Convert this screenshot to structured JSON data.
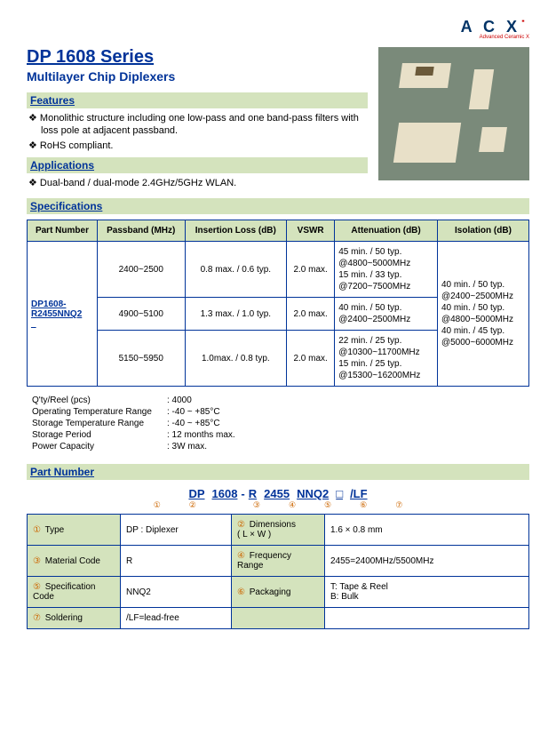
{
  "logo": {
    "text": "A C X",
    "sub": "Advanced Ceramic X"
  },
  "title": "DP 1608 Series",
  "subtitle": "Multilayer Chip Diplexers",
  "sections": {
    "features": "Features",
    "applications": "Applications",
    "specifications": "Specifications",
    "partnumber": "Part Number"
  },
  "features": [
    "Monolithic structure including one low-pass and one band-pass filters with loss pole at adjacent passband.",
    "RoHS compliant."
  ],
  "applications": [
    "Dual-band / dual-mode 2.4GHz/5GHz WLAN."
  ],
  "spec_headers": {
    "pn": "Part Number",
    "passband": "Passband (MHz)",
    "il": "Insertion Loss (dB)",
    "vswr": "VSWR",
    "att": "Attenuation (dB)",
    "iso": "Isolation (dB)"
  },
  "spec_pn": "DP1608-R2455NNQ2_",
  "spec_rows": [
    {
      "passband": "2400~2500",
      "il": "0.8 max. / 0.6 typ.",
      "vswr": "2.0 max.",
      "att": [
        "45 min. / 50 typ.",
        "@4800~5000MHz",
        "15 min. / 33 typ.",
        "@7200~7500MHz"
      ]
    },
    {
      "passband": "4900~5100",
      "il": "1.3 max. / 1.0 typ.",
      "vswr": "2.0 max.",
      "att": [
        "40 min. / 50 typ.",
        "@2400~2500MHz"
      ]
    },
    {
      "passband": "5150~5950",
      "il": "1.0max. / 0.8 typ.",
      "vswr": "2.0 max.",
      "att": [
        "22 min. / 25 typ.",
        "@10300~11700MHz",
        " 15 min. / 25 typ.",
        "@15300~16200MHz"
      ]
    }
  ],
  "iso_lines": [
    "40 min. / 50 typ.",
    "@2400~2500MHz",
    "40 min. / 50 typ.",
    "@4800~5000MHz",
    "40 min. / 45 typ.",
    "@5000~6000MHz"
  ],
  "notes": [
    [
      "Q'ty/Reel (pcs)",
      ": 4000"
    ],
    [
      "Operating Temperature Range",
      ": -40 ~ +85°C"
    ],
    [
      "Storage Temperature Range",
      ": -40 ~ +85°C"
    ],
    [
      "Storage Period",
      ": 12 months max."
    ],
    [
      "Power Capacity",
      ": 3W max."
    ]
  ],
  "pn_segments": [
    "DP",
    "1608",
    "-",
    "R",
    "2455",
    "NNQ2",
    "□",
    "/LF"
  ],
  "pn_circles": [
    "①",
    "②",
    "",
    "③",
    "④",
    "⑤",
    "⑥",
    "⑦"
  ],
  "pn_table": [
    [
      {
        "n": "①",
        "l": "Type"
      },
      "DP : Diplexer",
      {
        "n": "②",
        "l": "Dimensions ( L × W )"
      },
      "1.6 × 0.8 mm"
    ],
    [
      {
        "n": "③",
        "l": "Material Code"
      },
      "R",
      {
        "n": "④",
        "l": "Frequency Range"
      },
      "2455=2400MHz/5500MHz"
    ],
    [
      {
        "n": "⑤",
        "l": "Specification Code"
      },
      "NNQ2",
      {
        "n": "⑥",
        "l": "Packaging"
      },
      "T: Tape & Reel\nB: Bulk"
    ],
    [
      {
        "n": "⑦",
        "l": "Soldering"
      },
      "/LF=lead-free",
      null,
      null
    ]
  ],
  "colors": {
    "header_bg": "#d4e3bd",
    "border": "#003399",
    "accent": "#cc6600"
  }
}
